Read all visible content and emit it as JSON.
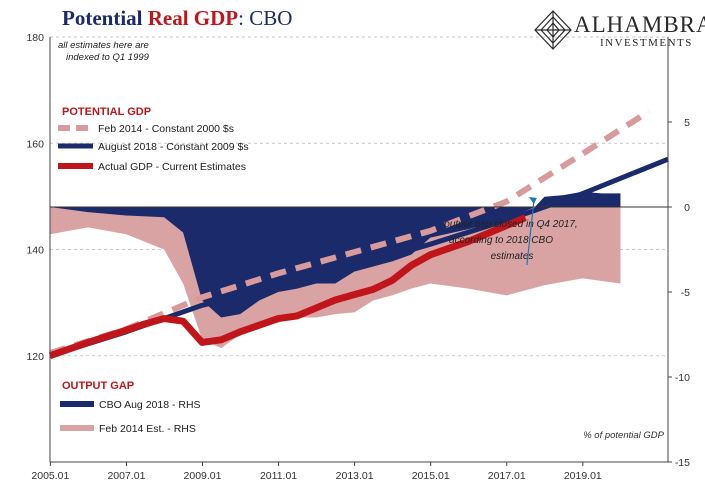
{
  "title": {
    "part1": "Potential ",
    "part2": "Real GDP",
    "part3": ":  CBO"
  },
  "logo": {
    "name": "ALHAMBRA",
    "sub": "INVESTMENTS"
  },
  "colors": {
    "navy": "#1b2a6b",
    "red": "#c0161b",
    "pink": "#d9a3a3",
    "pink_dash": "#d89a9a",
    "grid": "#c8c8c8"
  },
  "chart_data": {
    "type": "line",
    "title": "Potential Real GDP:  CBO",
    "note": "all estimates here are indexed to Q1 1999",
    "left_axis": {
      "ylim": [
        100,
        180
      ],
      "ticks": [
        "120",
        "140",
        "160",
        "180"
      ]
    },
    "right_axis": {
      "ylim": [
        -15,
        10
      ],
      "ticks": [
        "5",
        "0",
        "-5",
        "-10",
        "-15"
      ],
      "label": "% of potential GDP"
    },
    "x_ticks": [
      "2005.01",
      "2007.01",
      "2009.01",
      "2011.01",
      "2013.01",
      "2015.01",
      "2017.01",
      "2019.01"
    ],
    "xlim": [
      2005.0,
      2021.25
    ],
    "legend_top": {
      "heading": "POTENTIAL GDP",
      "items": [
        "Feb 2014 - Constant 2000 $s",
        "August 2018 - Constant 2009 $s",
        "Actual GDP - Current Estimates"
      ]
    },
    "legend_bottom": {
      "heading": "OUTPUT GAP",
      "items": [
        "CBO Aug 2018 - RHS",
        "Feb 2014 Est. - RHS"
      ]
    },
    "annotation": [
      "output gap closed in Q4 2017,",
      "according to 2018 CBO",
      "estimates"
    ],
    "series": [
      {
        "name": "Feb 2014 - Constant 2000 $s",
        "axis": "left",
        "x": [
          2005.0,
          2007.0,
          2009.0,
          2011.0,
          2013.0,
          2015.0,
          2017.0,
          2019.0,
          2020.75
        ],
        "y": [
          120.5,
          125,
          131,
          135.5,
          139.5,
          143.5,
          149,
          158,
          166
        ]
      },
      {
        "name": "August 2018 - Constant 2009 $s",
        "axis": "left",
        "x": [
          2005.0,
          2007.0,
          2009.0,
          2011.0,
          2013.0,
          2015.0,
          2017.0,
          2019.0,
          2021.25
        ],
        "y": [
          120,
          124.5,
          129.5,
          133,
          136.8,
          141,
          145.5,
          150.5,
          157
        ]
      },
      {
        "name": "Actual GDP - Current Estimates",
        "axis": "left",
        "x": [
          2005.0,
          2006.0,
          2007.0,
          2007.5,
          2008.0,
          2008.5,
          2009.0,
          2009.5,
          2010.0,
          2011.0,
          2011.5,
          2012.0,
          2012.5,
          2013.0,
          2013.5,
          2014.0,
          2014.5,
          2015.0,
          2016.0,
          2017.0,
          2017.5
        ],
        "y": [
          120,
          122.5,
          124.8,
          126,
          127,
          126.5,
          122.5,
          123,
          124.5,
          127,
          127.5,
          129,
          130.5,
          131.5,
          132.5,
          134.2,
          137,
          139,
          141.5,
          144.5,
          146
        ]
      },
      {
        "name": "CBO Aug 2018 - RHS",
        "axis": "right",
        "x": [
          2005.0,
          2006.0,
          2007.0,
          2008.0,
          2008.5,
          2009.0,
          2009.5,
          2010.0,
          2010.5,
          2011.0,
          2011.5,
          2012.0,
          2012.5,
          2013.0,
          2013.5,
          2014.0,
          2014.5,
          2015.0,
          2016.0,
          2017.0,
          2017.75,
          2018.0,
          2018.5,
          2019.0,
          2019.5,
          2020.0
        ],
        "y": [
          0,
          -0.3,
          -0.5,
          -0.6,
          -1.5,
          -5.5,
          -6.5,
          -6.3,
          -5.5,
          -5,
          -4.8,
          -4.5,
          -4.5,
          -3.8,
          -3.5,
          -3.2,
          -2.8,
          -1.8,
          -1.3,
          -0.7,
          0,
          0.6,
          0.7,
          0.9,
          0.8,
          0.8
        ]
      },
      {
        "name": "Feb 2014 Est. - RHS",
        "axis": "right",
        "x": [
          2005.0,
          2006.0,
          2007.0,
          2008.0,
          2008.5,
          2009.0,
          2009.5,
          2010.0,
          2010.5,
          2011.0,
          2011.5,
          2012.0,
          2012.5,
          2013.0,
          2013.5,
          2014.0,
          2014.5,
          2015.0,
          2016.0,
          2017.0,
          2018.0,
          2019.0,
          2020.0
        ],
        "y": [
          -1.6,
          -1.2,
          -1.6,
          -2.5,
          -4.5,
          -7.8,
          -8.3,
          -7.5,
          -7,
          -6.8,
          -6.5,
          -6.5,
          -6.3,
          -6.2,
          -5.5,
          -5.2,
          -4.8,
          -4.5,
          -4.8,
          -5.2,
          -4.6,
          -4.2,
          -4.5
        ]
      }
    ]
  }
}
